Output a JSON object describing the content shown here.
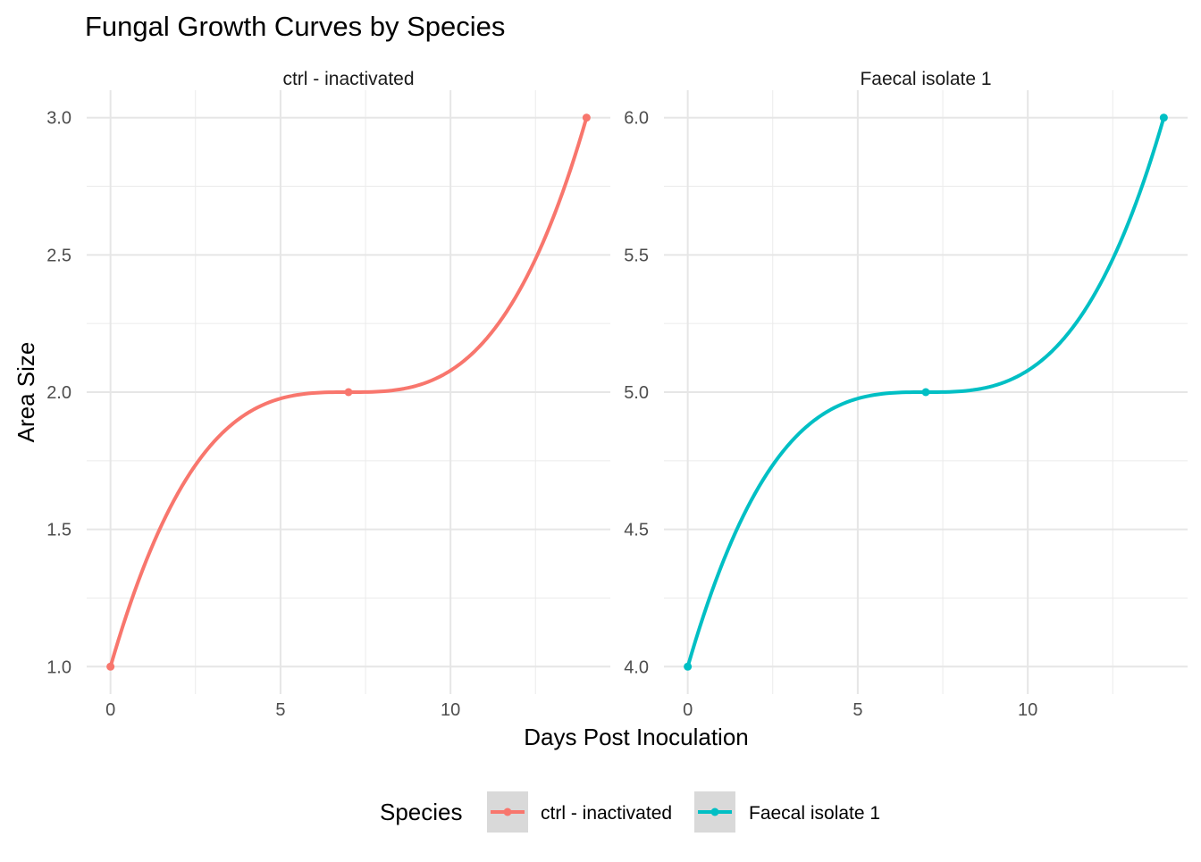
{
  "chart_data": {
    "type": "line",
    "title": "Fungal Growth Curves by Species",
    "xlabel": "Days Post Inoculation",
    "ylabel": "Area Size",
    "legend": {
      "title": "Species",
      "position": "bottom",
      "entries": [
        {
          "name": "ctrl - inactivated",
          "color": "#F8766D"
        },
        {
          "name": "Faecal isolate 1",
          "color": "#00BFC4"
        }
      ]
    },
    "grid": true,
    "xlim": [
      -0.7,
      14.7
    ],
    "x_ticks": [
      0,
      5,
      10
    ],
    "panels": [
      {
        "name": "ctrl - inactivated",
        "color": "#F8766D",
        "ylim": [
          0.9,
          3.1
        ],
        "y_ticks": [
          1.0,
          1.5,
          2.0,
          2.5,
          3.0
        ],
        "y_tick_labels": [
          "1.0",
          "1.5",
          "2.0",
          "2.5",
          "3.0"
        ],
        "points": [
          {
            "x": 0,
            "y": 1.0
          },
          {
            "x": 7,
            "y": 2.0
          },
          {
            "x": 14,
            "y": 3.0
          }
        ]
      },
      {
        "name": "Faecal isolate 1",
        "color": "#00BFC4",
        "ylim": [
          3.9,
          6.1
        ],
        "y_ticks": [
          4.0,
          4.5,
          5.0,
          5.5,
          6.0
        ],
        "y_tick_labels": [
          "4.0",
          "4.5",
          "5.0",
          "5.5",
          "6.0"
        ],
        "points": [
          {
            "x": 0,
            "y": 4.0
          },
          {
            "x": 7,
            "y": 5.0
          },
          {
            "x": 14,
            "y": 6.0
          }
        ]
      }
    ]
  }
}
